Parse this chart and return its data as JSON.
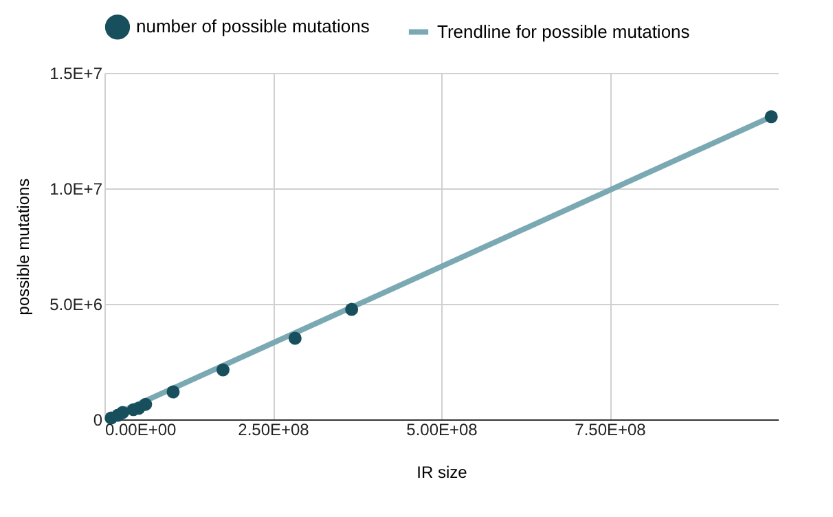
{
  "chart_data": {
    "type": "scatter",
    "xlabel": "IR size",
    "ylabel": "possible mutations",
    "series": [
      {
        "name": "number of possible mutations",
        "marker": "circle",
        "color": "#174f5c",
        "x": [
          10000000.0,
          20000000.0,
          27000000.0,
          43000000.0,
          51000000.0,
          61000000.0,
          102000000.0,
          176000000.0,
          283000000.0,
          367000000.0,
          990000000.0
        ],
        "values": [
          60000,
          180000,
          300000,
          420000,
          480000,
          650000,
          1190000,
          2140000,
          3510000,
          4760000,
          13100000
        ]
      },
      {
        "name": "Trendline for possible mutations",
        "type": "line",
        "color": "#7aa9b3",
        "x": [
          10000000.0,
          990000000.0
        ],
        "values": [
          130000,
          13100000
        ]
      }
    ],
    "xlim": [
      0,
      1000000000.0
    ],
    "xticks": [
      {
        "value": 0,
        "label": "0.00E+00"
      },
      {
        "value": 250000000,
        "label": "2.50E+08"
      },
      {
        "value": 500000000,
        "label": "5.00E+08"
      },
      {
        "value": 750000000,
        "label": "7.50E+08"
      }
    ],
    "ylim": [
      0,
      15000000
    ],
    "yticks": [
      0,
      {
        "value": 5000000,
        "label": "5.0E+6"
      },
      {
        "value": 10000000,
        "label": "1.0E+7"
      },
      {
        "value": 15000000,
        "label": "1.5E+7"
      }
    ],
    "grid": true,
    "legend": "top"
  }
}
